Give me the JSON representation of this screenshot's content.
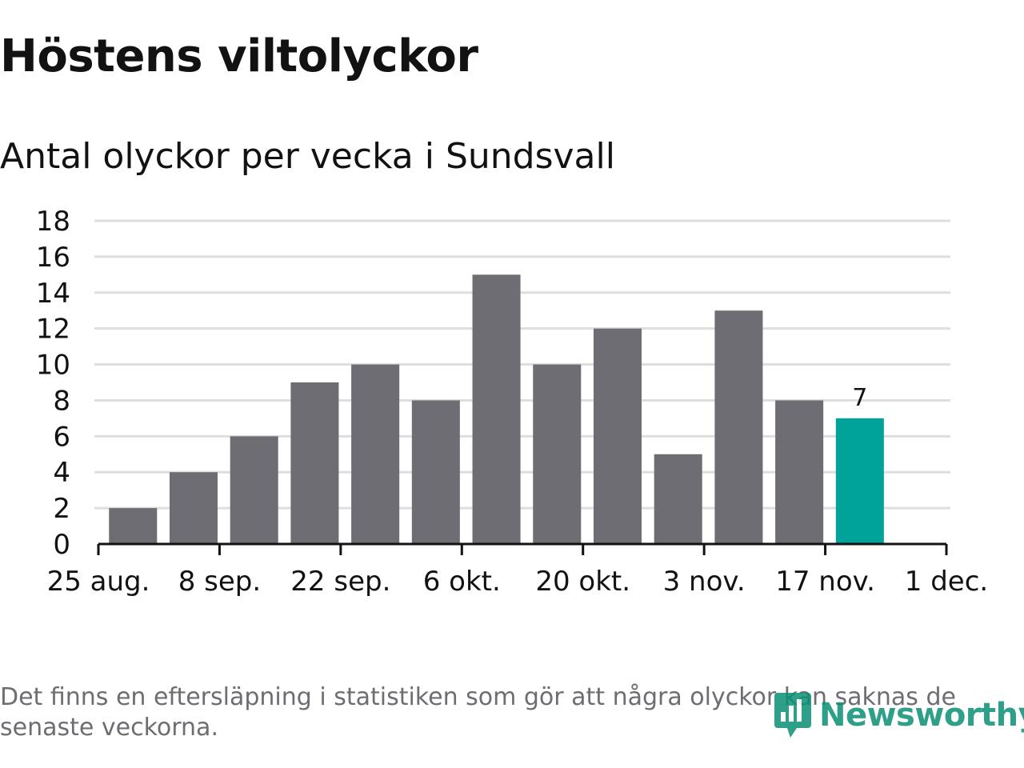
{
  "header": {
    "title": "Höstens viltolyckor",
    "subtitle": "Antal olyckor per vecka i Sundsvall"
  },
  "footnote": "Det finns en eftersläpning i statistiken som gör att några olyckor kan saknas de senaste veckorna.",
  "logo": {
    "text": "Newsworthy",
    "icon": "newsworthy-logo-icon"
  },
  "colors": {
    "bar": "#6e6d73",
    "highlight": "#00a39a",
    "grid": "#dedede",
    "axis": "#121212",
    "text": "#121212",
    "logo": "#0a8f74"
  },
  "chart_data": {
    "type": "bar",
    "title": "Höstens viltolyckor",
    "subtitle": "Antal olyckor per vecka i Sundsvall",
    "x_type": "date-week",
    "x": [
      "2019-09-01",
      "2019-09-08",
      "2019-09-15",
      "2019-09-22",
      "2019-09-29",
      "2019-10-06",
      "2019-10-13",
      "2019-10-20",
      "2019-10-27",
      "2019-11-03",
      "2019-11-10",
      "2019-11-17",
      "2019-11-24"
    ],
    "values": [
      2,
      4,
      6,
      9,
      10,
      8,
      15,
      10,
      12,
      5,
      13,
      8,
      7
    ],
    "highlight_index": 12,
    "data_labels": [
      {
        "index": 12,
        "text": "7"
      }
    ],
    "ylim": [
      0,
      18
    ],
    "yticks": [
      0,
      2,
      4,
      6,
      8,
      10,
      12,
      14,
      16,
      18
    ],
    "xlim": [
      "2019-08-25",
      "2019-12-01"
    ],
    "xticks": [
      {
        "date": "2019-08-25",
        "label": "25 aug."
      },
      {
        "date": "2019-09-08",
        "label": "8 sep."
      },
      {
        "date": "2019-09-22",
        "label": "22 sep."
      },
      {
        "date": "2019-10-06",
        "label": "6 okt."
      },
      {
        "date": "2019-10-20",
        "label": "20 okt."
      },
      {
        "date": "2019-11-03",
        "label": "3 nov."
      },
      {
        "date": "2019-11-17",
        "label": "17 nov."
      },
      {
        "date": "2019-12-01",
        "label": "1 dec."
      }
    ],
    "grid": true,
    "legend": "none"
  }
}
